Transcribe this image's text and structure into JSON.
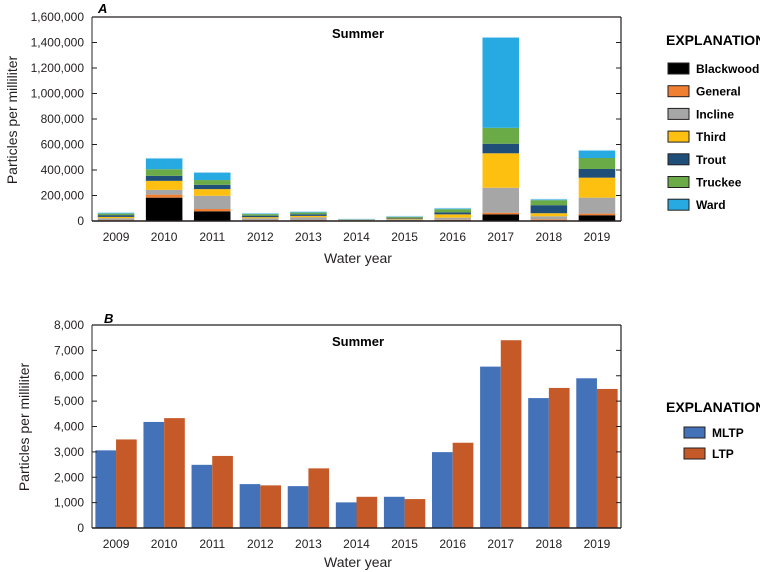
{
  "chart_data": [
    {
      "type": "bar",
      "stacked": true,
      "panel_label": "A",
      "title": "Summer",
      "xlabel": "Water year",
      "ylabel": "Particles per milliliter",
      "ylim": [
        0,
        1600000
      ],
      "yticks": [
        0,
        200000,
        400000,
        600000,
        800000,
        1000000,
        1200000,
        1400000,
        1600000
      ],
      "ytick_labels": [
        "0",
        "200,000",
        "400,000",
        "600,000",
        "800,000",
        "1,000,000",
        "1,200,000",
        "1,400,000",
        "1,600,000"
      ],
      "categories": [
        "2009",
        "2010",
        "2011",
        "2012",
        "2013",
        "2014",
        "2015",
        "2016",
        "2017",
        "2018",
        "2019"
      ],
      "legend_title": "EXPLANATION",
      "legend_position": "right",
      "grid": false,
      "series": [
        {
          "name": "Blackwood",
          "color": "#000000",
          "values": [
            5000,
            183000,
            76000,
            4000,
            5000,
            1000,
            3000,
            6000,
            52000,
            5000,
            45000
          ]
        },
        {
          "name": "General",
          "color": "#f07f32",
          "values": [
            3000,
            24000,
            18000,
            3000,
            3000,
            1000,
            2000,
            4000,
            13000,
            8000,
            13000
          ]
        },
        {
          "name": "Incline",
          "color": "#a6a6a6",
          "values": [
            14000,
            37000,
            104000,
            14000,
            22000,
            3000,
            8000,
            16000,
            196000,
            24000,
            125000
          ]
        },
        {
          "name": "Third",
          "color": "#fec010",
          "values": [
            10000,
            71000,
            52000,
            9000,
            10000,
            2000,
            6000,
            26000,
            270000,
            24000,
            157000
          ]
        },
        {
          "name": "Trout",
          "color": "#1f4e79",
          "values": [
            14000,
            39000,
            34000,
            12000,
            13000,
            3000,
            7000,
            16000,
            75000,
            63000,
            68000
          ]
        },
        {
          "name": "Truckee",
          "color": "#6aaa47",
          "values": [
            12000,
            52000,
            37000,
            12000,
            13000,
            3000,
            7000,
            24000,
            125000,
            39000,
            86000
          ]
        },
        {
          "name": "Ward",
          "color": "#27aae1",
          "values": [
            7000,
            86000,
            60000,
            6000,
            7000,
            2000,
            4000,
            8000,
            709000,
            8000,
            60000
          ]
        }
      ]
    },
    {
      "type": "bar",
      "stacked": false,
      "panel_label": "B",
      "title": "Summer",
      "xlabel": "Water year",
      "ylabel": "Particles per milliliter",
      "ylim": [
        0,
        8000
      ],
      "yticks": [
        0,
        1000,
        2000,
        3000,
        4000,
        5000,
        6000,
        7000,
        8000
      ],
      "ytick_labels": [
        "0",
        "1,000",
        "2,000",
        "3,000",
        "4,000",
        "5,000",
        "6,000",
        "7,000",
        "8,000"
      ],
      "categories": [
        "2009",
        "2010",
        "2011",
        "2012",
        "2013",
        "2014",
        "2015",
        "2016",
        "2017",
        "2018",
        "2019"
      ],
      "legend_title": "EXPLANATION",
      "legend_position": "right",
      "grid": false,
      "series": [
        {
          "name": "MLTP",
          "color": "#4472b9",
          "values": [
            3060,
            4180,
            2490,
            1730,
            1650,
            1010,
            1230,
            2990,
            6360,
            5120,
            5900
          ]
        },
        {
          "name": "LTP",
          "color": "#c55a28",
          "values": [
            3490,
            4330,
            2840,
            1680,
            2350,
            1230,
            1140,
            3360,
            7400,
            5520,
            5480
          ]
        }
      ]
    }
  ]
}
